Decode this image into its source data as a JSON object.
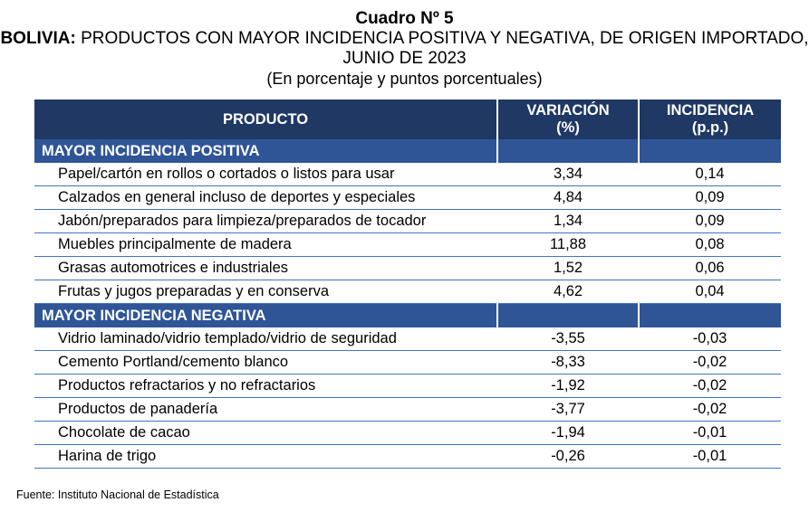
{
  "title": {
    "cuadro": "Cuadro Nº 5",
    "country": "BOLIVIA:",
    "heading": " PRODUCTOS CON MAYOR INCIDENCIA POSITIVA Y NEGATIVA, DE ORIGEN IMPORTADO, JUNIO DE 2023",
    "subtitle": "(En porcentaje y puntos porcentuales)"
  },
  "table": {
    "headers": {
      "producto": "PRODUCTO",
      "variacion": "VARIACIÓN",
      "variacion_unit": "(%)",
      "incidencia": "INCIDENCIA",
      "incidencia_unit": "(p.p.)"
    },
    "sections": [
      {
        "label": "MAYOR INCIDENCIA POSITIVA",
        "rows": [
          {
            "producto": "Papel/cartón en rollos o cortados o listos para usar",
            "variacion": "3,34",
            "incidencia": "0,14"
          },
          {
            "producto": "Calzados en general incluso de deportes y especiales",
            "variacion": "4,84",
            "incidencia": "0,09"
          },
          {
            "producto": "Jabón/preparados para limpieza/preparados de tocador",
            "variacion": "1,34",
            "incidencia": "0,09"
          },
          {
            "producto": "Muebles principalmente de madera",
            "variacion": "11,88",
            "incidencia": "0,08"
          },
          {
            "producto": "Grasas automotrices e industriales",
            "variacion": "1,52",
            "incidencia": "0,06"
          },
          {
            "producto": "Frutas y jugos preparadas y en conserva",
            "variacion": "4,62",
            "incidencia": "0,04"
          }
        ]
      },
      {
        "label": "MAYOR INCIDENCIA NEGATIVA",
        "rows": [
          {
            "producto": "Vidrio laminado/vidrio templado/vidrio de seguridad",
            "variacion": "-3,55",
            "incidencia": "-0,03"
          },
          {
            "producto": "Cemento Portland/cemento blanco",
            "variacion": "-8,33",
            "incidencia": "-0,02"
          },
          {
            "producto": "Productos refractarios y no refractarios",
            "variacion": "-1,92",
            "incidencia": "-0,02"
          },
          {
            "producto": "Productos de panadería",
            "variacion": "-3,77",
            "incidencia": "-0,02"
          },
          {
            "producto": "Chocolate de cacao",
            "variacion": "-1,94",
            "incidencia": "-0,01"
          },
          {
            "producto": "Harina de trigo",
            "variacion": "-0,26",
            "incidencia": "-0,01"
          }
        ]
      }
    ]
  },
  "source": "Fuente: Instituto Nacional de Estadística",
  "colors": {
    "header_bg": "#1f3864",
    "section_bg": "#2f5597",
    "row_border": "#4472c4"
  }
}
